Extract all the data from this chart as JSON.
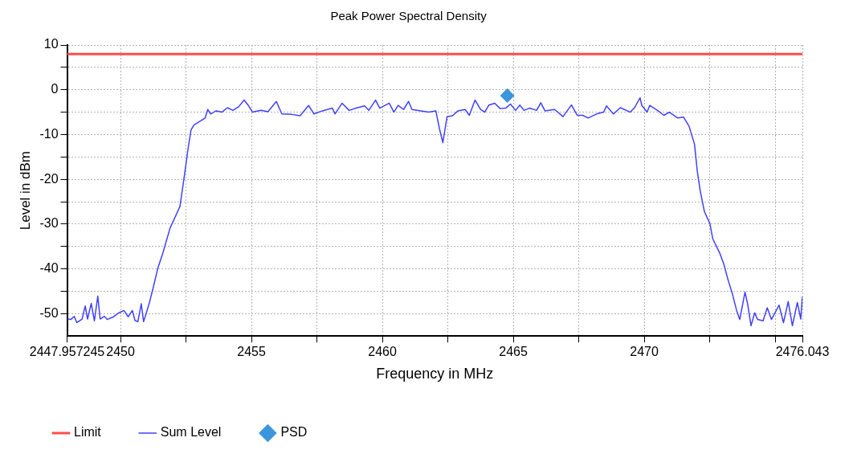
{
  "chart_data": {
    "type": "line",
    "title": "Peak Power Spectral Density",
    "xlabel": "Frequency in MHz",
    "ylabel": "Level in dBm",
    "xlim": [
      2447.957245,
      2476.043
    ],
    "xticks": [
      {
        "value": 2447.957245,
        "label": "2447.957245"
      },
      2450,
      {
        "value": 2452.5,
        "label": null
      },
      2455,
      {
        "value": 2457.5,
        "label": null
      },
      2460,
      {
        "value": 2462.5,
        "label": null
      },
      2465,
      {
        "value": 2467.5,
        "label": null
      },
      2470,
      {
        "value": 2472.5,
        "label": null
      },
      {
        "value": 2475,
        "label": null
      },
      2476.043
    ],
    "ylim": [
      -55,
      10
    ],
    "yticks": [
      10,
      {
        "value": 5,
        "label": null
      },
      0,
      {
        "value": -5,
        "label": null
      },
      -10,
      {
        "value": -15,
        "label": null
      },
      -20,
      {
        "value": -25,
        "label": null
      },
      -30,
      {
        "value": -35,
        "label": null
      },
      -40,
      {
        "value": -45,
        "label": null
      },
      -50
    ],
    "grid": true,
    "legend": "bottom",
    "marker": "none",
    "series": [
      {
        "name": "Limit",
        "type": "line",
        "color": "#ff4d4d",
        "x": [
          2447.957245,
          2476.043
        ],
        "values": [
          8,
          8
        ]
      },
      {
        "name": "Sum Level",
        "type": "line",
        "color": "#4040ff",
        "x": [
          2447.97,
          2448.1,
          2448.23,
          2448.33,
          2448.53,
          2448.65,
          2448.74,
          2448.88,
          2449.0,
          2449.13,
          2449.22,
          2449.38,
          2449.49,
          2449.7,
          2449.91,
          2450.13,
          2450.29,
          2450.45,
          2450.55,
          2450.66,
          2450.79,
          2450.88,
          2451.09,
          2451.25,
          2451.43,
          2451.62,
          2451.89,
          2452.11,
          2452.27,
          2452.43,
          2452.59,
          2452.69,
          2452.8,
          2453.01,
          2453.23,
          2453.33,
          2453.44,
          2453.65,
          2453.87,
          2454.08,
          2454.29,
          2454.51,
          2454.72,
          2454.88,
          2455.04,
          2455.36,
          2455.63,
          2455.95,
          2456.16,
          2456.54,
          2456.86,
          2457.18,
          2457.39,
          2457.71,
          2458.09,
          2458.19,
          2458.46,
          2458.73,
          2459.0,
          2459.32,
          2459.48,
          2459.74,
          2459.9,
          2460.26,
          2460.44,
          2460.6,
          2460.81,
          2461.0,
          2461.13,
          2461.46,
          2461.77,
          2462.04,
          2462.18,
          2462.31,
          2462.47,
          2462.68,
          2462.89,
          2463.16,
          2463.32,
          2463.54,
          2463.75,
          2463.91,
          2464.07,
          2464.29,
          2464.5,
          2464.71,
          2464.89,
          2465.09,
          2465.25,
          2465.41,
          2465.62,
          2465.89,
          2466.05,
          2466.21,
          2466.58,
          2466.9,
          2467.22,
          2467.44,
          2467.65,
          2467.86,
          2468.18,
          2468.45,
          2468.56,
          2468.82,
          2469.09,
          2469.47,
          2469.63,
          2469.84,
          2469.91,
          2470.11,
          2470.21,
          2470.53,
          2470.75,
          2470.96,
          2471.28,
          2471.5,
          2471.71,
          2471.92,
          2472.03,
          2472.14,
          2472.3,
          2472.51,
          2472.62,
          2472.88,
          2473.04,
          2473.21,
          2473.37,
          2473.53,
          2473.65,
          2473.85,
          2473.95,
          2474.08,
          2474.22,
          2474.33,
          2474.54,
          2474.7,
          2474.86,
          2475.15,
          2475.32,
          2475.5,
          2475.66,
          2475.85,
          2475.98,
          2476.04
        ],
        "values": [
          -51.2,
          -51.3,
          -50.6,
          -52.0,
          -51.2,
          -48.3,
          -51.2,
          -47.7,
          -51.6,
          -46.1,
          -51.2,
          -50.6,
          -51.3,
          -50.8,
          -49.9,
          -49.3,
          -50.7,
          -49.3,
          -51.5,
          -51.8,
          -47.8,
          -51.8,
          -47.8,
          -44.1,
          -39.7,
          -36.4,
          -30.9,
          -28.1,
          -26.0,
          -19.5,
          -12.7,
          -9.0,
          -7.9,
          -7.1,
          -6.3,
          -4.4,
          -5.4,
          -4.7,
          -5.0,
          -4.0,
          -4.6,
          -3.8,
          -2.3,
          -3.5,
          -5.0,
          -4.6,
          -4.9,
          -2.6,
          -5.4,
          -5.5,
          -5.8,
          -3.5,
          -5.4,
          -4.7,
          -4.1,
          -5.4,
          -3.0,
          -4.6,
          -4.1,
          -3.6,
          -4.6,
          -2.3,
          -4.1,
          -3.0,
          -5.0,
          -3.5,
          -4.4,
          -2.6,
          -4.4,
          -4.7,
          -5.0,
          -4.7,
          -8.7,
          -11.8,
          -6.0,
          -5.8,
          -4.7,
          -4.4,
          -5.7,
          -2.3,
          -4.4,
          -5.0,
          -3.4,
          -3.0,
          -4.2,
          -4.1,
          -3.2,
          -4.6,
          -3.4,
          -4.6,
          -4.1,
          -4.6,
          -2.9,
          -4.7,
          -4.4,
          -6.0,
          -3.4,
          -5.7,
          -5.7,
          -6.3,
          -5.4,
          -5.0,
          -3.6,
          -5.4,
          -4.0,
          -5.0,
          -4.0,
          -1.8,
          -3.5,
          -5.0,
          -3.5,
          -4.7,
          -5.7,
          -5.0,
          -6.3,
          -6.1,
          -8.1,
          -12.1,
          -18.3,
          -22.6,
          -27.2,
          -29.9,
          -33.3,
          -36.4,
          -38.9,
          -42.6,
          -45.6,
          -49.3,
          -51.3,
          -45.2,
          -47.8,
          -52.7,
          -49.8,
          -51.3,
          -51.6,
          -48.7,
          -51.3,
          -48.1,
          -52.0,
          -47.3,
          -52.7,
          -47.5,
          -51.2,
          -46.2
        ]
      },
      {
        "name": "PSD",
        "type": "scatter",
        "color": "#3c96dc",
        "marker": "diamond",
        "x": [
          2464.77
        ],
        "values": [
          -1.3
        ]
      }
    ]
  }
}
